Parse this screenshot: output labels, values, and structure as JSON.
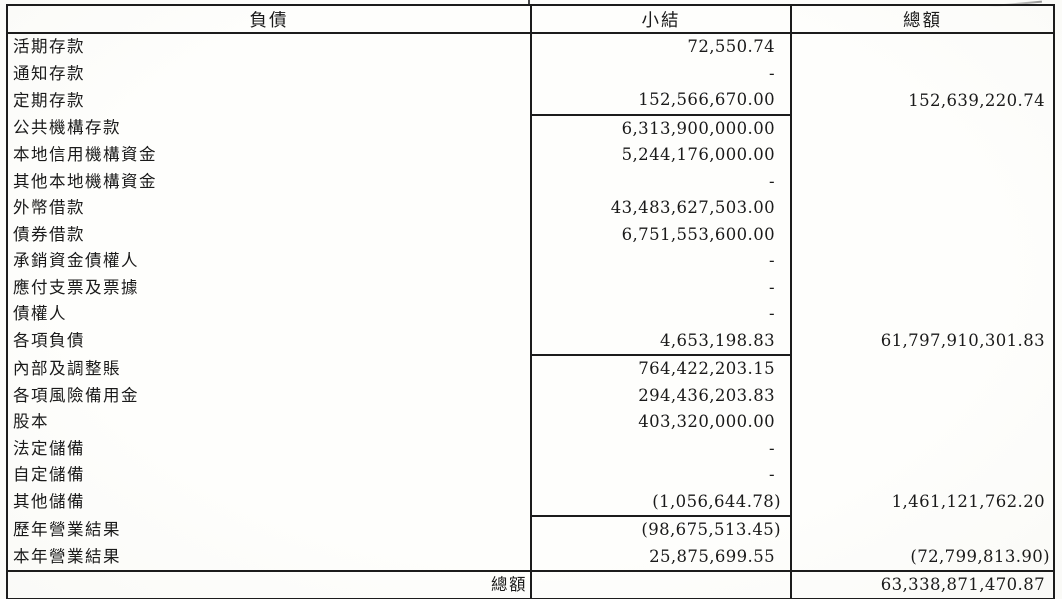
{
  "table": {
    "headers": {
      "liabilities": "負債",
      "subtotal": "小結",
      "total": "總額"
    },
    "rows": [
      {
        "label": "活期存款",
        "subtotal": "72,550.74",
        "total": "",
        "line_below": false
      },
      {
        "label": "通知存款",
        "subtotal": "-",
        "total": "",
        "line_below": false
      },
      {
        "label": "定期存款",
        "subtotal": "152,566,670.00",
        "total": "152,639,220.74",
        "line_below": true
      },
      {
        "label": "公共機構存款",
        "subtotal": "6,313,900,000.00",
        "total": "",
        "line_below": false
      },
      {
        "label": "本地信用機構資金",
        "subtotal": "5,244,176,000.00",
        "total": "",
        "line_below": false
      },
      {
        "label": "其他本地機構資金",
        "subtotal": "-",
        "total": "",
        "line_below": false
      },
      {
        "label": "外幣借款",
        "subtotal": "43,483,627,503.00",
        "total": "",
        "line_below": false
      },
      {
        "label": "債券借款",
        "subtotal": "6,751,553,600.00",
        "total": "",
        "line_below": false
      },
      {
        "label": "承銷資金債權人",
        "subtotal": "-",
        "total": "",
        "line_below": false
      },
      {
        "label": "應付支票及票據",
        "subtotal": "-",
        "total": "",
        "line_below": false
      },
      {
        "label": "債權人",
        "subtotal": "-",
        "total": "",
        "line_below": false
      },
      {
        "label": "各項負債",
        "subtotal": "4,653,198.83",
        "total": "61,797,910,301.83",
        "line_below": true
      },
      {
        "label": "內部及調整賬",
        "subtotal": "764,422,203.15",
        "total": "",
        "line_below": false
      },
      {
        "label": "各項風險備用金",
        "subtotal": "294,436,203.83",
        "total": "",
        "line_below": false
      },
      {
        "label": "股本",
        "subtotal": "403,320,000.00",
        "total": "",
        "line_below": false
      },
      {
        "label": "法定儲備",
        "subtotal": "-",
        "total": "",
        "line_below": false
      },
      {
        "label": "自定儲備",
        "subtotal": "-",
        "total": "",
        "line_below": false
      },
      {
        "label": "其他儲備",
        "subtotal": "(1,056,644.78)",
        "total": "1,461,121,762.20",
        "line_below": true
      },
      {
        "label": "歷年營業結果",
        "subtotal": "(98,675,513.45)",
        "total": "",
        "line_below": false
      },
      {
        "label": "本年營業結果",
        "subtotal": "25,875,699.55",
        "total": "(72,799,813.90)",
        "line_below": false
      }
    ],
    "footer": {
      "label": "總額",
      "subtotal": "",
      "total": "63,338,871,470.87"
    }
  },
  "colors": {
    "paper": "#fdfdfb",
    "ink": "#1a1a1a",
    "rule": "#1c1c1c"
  }
}
